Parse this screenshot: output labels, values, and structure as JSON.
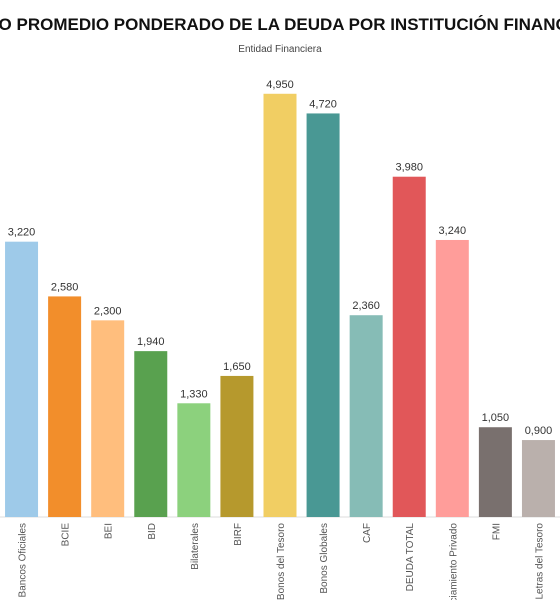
{
  "chart_data": {
    "type": "bar",
    "title": "COSTO PROMEDIO PONDERADO DE LA DEUDA POR INSTITUCIÓN FINANCIERA",
    "subtitle": "Entidad Financiera",
    "categories": [
      "Bancos Oficiales",
      "BCIE",
      "BEI",
      "BID",
      "Bilaterales",
      "BIRF",
      "Bonos del Tesoro",
      "Bonos Globales",
      "CAF",
      "DEUDA TOTAL",
      "Financiamiento Privado",
      "FMI",
      "Letras del Tesoro"
    ],
    "values": [
      3.22,
      2.58,
      2.3,
      1.94,
      1.33,
      1.65,
      4.95,
      4.72,
      2.36,
      3.98,
      3.24,
      1.05,
      0.9
    ],
    "value_labels": [
      "3,220",
      "2,580",
      "2,300",
      "1,940",
      "1,330",
      "1,650",
      "4,950",
      "4,720",
      "2,360",
      "3,980",
      "3,240",
      "1,050",
      "0,900"
    ],
    "colors": [
      "#9ecae9",
      "#f28e2b",
      "#ffbe7d",
      "#59a14f",
      "#8cd17d",
      "#b6992d",
      "#f1ce63",
      "#499894",
      "#86bcb6",
      "#e15759",
      "#ff9d9a",
      "#79706e",
      "#bab0ac"
    ],
    "ylim": [
      0,
      5
    ]
  }
}
